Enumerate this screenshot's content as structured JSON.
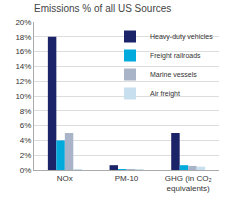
{
  "chart_data": {
    "type": "bar",
    "title": "Emissions % of all US Sources",
    "categories": [
      "NOx",
      "PM-10",
      "GHG (in CO₂\nequivalents)"
    ],
    "series": [
      {
        "name": "Heavy-duty vehicles",
        "color": "#1c2469",
        "values": [
          18.0,
          0.65,
          5.0
        ]
      },
      {
        "name": "Freight railroads",
        "color": "#00aadd",
        "values": [
          4.0,
          0.02,
          0.65
        ]
      },
      {
        "name": "Marine vessels",
        "color": "#aab4c8",
        "values": [
          5.0,
          0.08,
          0.55
        ]
      },
      {
        "name": "Air freight",
        "color": "#c8dff0",
        "values": [
          0.02,
          0.02,
          0.45
        ]
      }
    ],
    "ylim": [
      0,
      20
    ],
    "yticks": [
      {
        "value": 0,
        "label": "0%"
      },
      {
        "value": 2,
        "label": "2%"
      },
      {
        "value": 4,
        "label": "4%"
      },
      {
        "value": 6,
        "label": "6%"
      },
      {
        "value": 8,
        "label": "8%"
      },
      {
        "value": 10,
        "label": "10%"
      },
      {
        "value": 12,
        "label": "12%"
      },
      {
        "value": 14,
        "label": "14%"
      },
      {
        "value": 16,
        "label": "16%"
      },
      {
        "value": 18,
        "label": "18%"
      },
      {
        "value": 20,
        "label": "20%"
      }
    ],
    "grid": true,
    "legend": "upper right"
  }
}
